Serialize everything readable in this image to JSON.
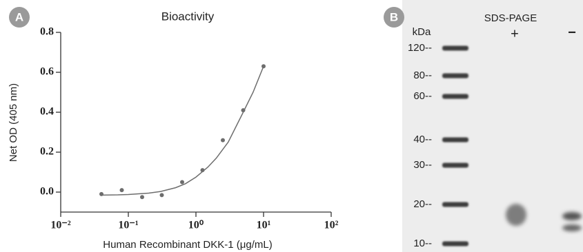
{
  "chart_data": {
    "type": "scatter",
    "title": "Bioactivity",
    "panel": "A",
    "xlabel": "Human Recombinant DKK-1 (μg/mL)",
    "ylabel": "Net OD (405 nm)",
    "xscale": "log",
    "xlim": [
      0.01,
      100
    ],
    "xticks": [
      {
        "value": 0.01,
        "label": "10⁻²"
      },
      {
        "value": 0.1,
        "label": "10⁻¹"
      },
      {
        "value": 1,
        "label": "10⁰"
      },
      {
        "value": 10,
        "label": "10¹"
      },
      {
        "value": 100,
        "label": "10²"
      }
    ],
    "ylim": [
      -0.1,
      0.8
    ],
    "yticks": [
      {
        "value": 0,
        "label": "0.0"
      },
      0.2,
      0.4,
      0.6,
      0.8
    ],
    "series": [
      {
        "mode": "markers",
        "color": "#6d6d6d",
        "x": [
          0.04,
          0.08,
          0.16,
          0.3125,
          0.625,
          1.25,
          2.5,
          5,
          10
        ],
        "values": [
          -0.01,
          0.01,
          -0.025,
          -0.015,
          0.05,
          0.11,
          0.26,
          0.41,
          0.63
        ]
      },
      {
        "mode": "line",
        "color": "#6d6d6d",
        "x": [
          0.04,
          0.07,
          0.1,
          0.2,
          0.3,
          0.5,
          0.7,
          1,
          1.5,
          2,
          3,
          5,
          7,
          10
        ],
        "values": [
          -0.015,
          -0.014,
          -0.012,
          -0.005,
          0.003,
          0.022,
          0.042,
          0.075,
          0.125,
          0.17,
          0.25,
          0.4,
          0.5,
          0.63
        ]
      }
    ]
  },
  "gel": {
    "panel": "B",
    "title": "SDS-PAGE",
    "unit": "kDa",
    "lanes": [
      "+",
      "−"
    ],
    "markers": [
      "120--",
      "80--",
      "60--",
      "40--",
      "30--",
      "20--",
      "10--"
    ]
  }
}
